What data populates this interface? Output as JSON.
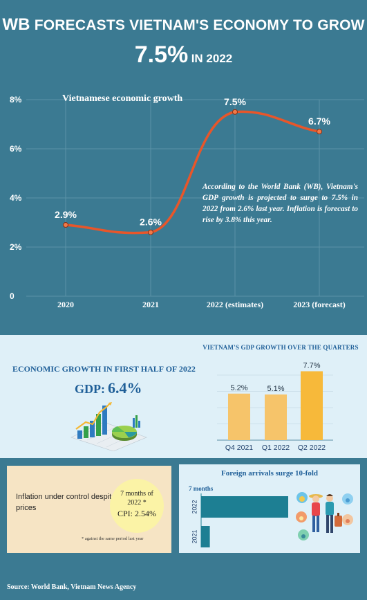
{
  "header": {
    "title_big": "WB",
    "title_rest": "FORECASTS VIETNAM'S ECONOMY TO GROW",
    "subtitle_pct": "7.5%",
    "subtitle_in": "IN 2022"
  },
  "chart_data": [
    {
      "type": "line",
      "title": "Vietnamese economic growth",
      "categories": [
        "2020",
        "2021",
        "2022 (estimates)",
        "2023 (forecast)"
      ],
      "values": [
        2.9,
        2.6,
        7.5,
        6.7
      ],
      "data_labels": [
        "2.9%",
        "2.6%",
        "7.5%",
        "6.7%"
      ],
      "y_ticks": [
        "0",
        "2%",
        "4%",
        "6%",
        "8%"
      ],
      "ylim": [
        0,
        8
      ],
      "grid": true,
      "line_color": "#e8562a",
      "annotation": "According to the World Bank (WB), Vietnam's GDP growth is projected to surge to 7.5% in 2022 from 2.6% last year. Inflation is forecast to rise by 3.8% this year."
    },
    {
      "type": "bar",
      "title": "VIETNAM'S GDP GROWTH OVER THE QUARTERS",
      "categories": [
        "Q4 2021",
        "Q1 2022",
        "Q2 2022"
      ],
      "values": [
        5.2,
        5.1,
        7.7
      ],
      "data_labels": [
        "5.2%",
        "5.1%",
        "7.7%"
      ],
      "colors": [
        "#f6c46a",
        "#f6c46a",
        "#f7b93a"
      ],
      "grid": true
    },
    {
      "type": "bar",
      "orientation": "horizontal",
      "title": "Foreign arrivals surge 10-fold",
      "period_label": "7 months",
      "categories": [
        "2022",
        "2021"
      ],
      "values": [
        10,
        1
      ],
      "bar_color": "#1d7f93"
    }
  ],
  "gdp_panel": {
    "title": "ECONOMIC GROWTH IN FIRST HALF OF 2022",
    "gdp_label": "GDP:",
    "gdp_value": "6.4%"
  },
  "inflation_panel": {
    "text": "Inflation under control despite rising fuel prices",
    "period": "7 months of 2022 *",
    "cpi": "CPI: 2.54%",
    "note": "* against the same period last year"
  },
  "source": "Source: World Bank, Vietnam News Agency",
  "colors": {
    "background": "#3b7a92",
    "panel": "#dff0f8",
    "accent": "#e8562a",
    "title_blue": "#1f5f98"
  },
  "icons": [
    "growth-chart-illustration-icon",
    "tourists-illustration-icon"
  ]
}
